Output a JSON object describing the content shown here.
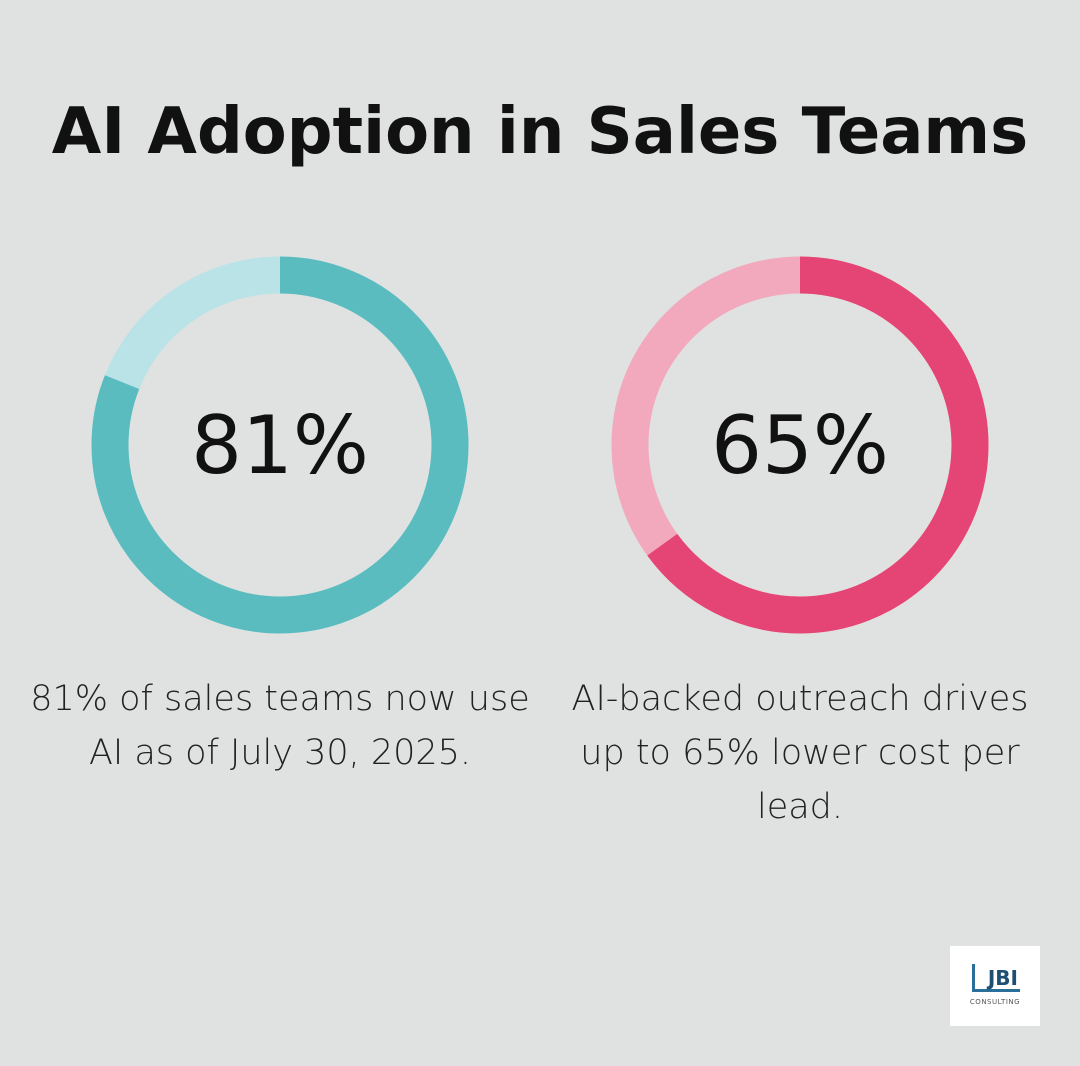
{
  "title": "AI Adoption in Sales Teams",
  "chart_data": [
    {
      "type": "donut",
      "values": [
        81
      ],
      "value_labels": [
        "81%"
      ],
      "color": "#5bbcc0",
      "track_color": "#b9e3e6",
      "caption": "81% of sales teams now use AI as of July 30, 2025."
    },
    {
      "type": "donut",
      "values": [
        65
      ],
      "value_labels": [
        "65%"
      ],
      "color": "#e44574",
      "track_color": "#f2a9be",
      "caption": "AI-backed outreach drives up to 65% lower cost per lead."
    }
  ],
  "logo": {
    "name": "JBI",
    "tagline": "CONSULTING"
  }
}
